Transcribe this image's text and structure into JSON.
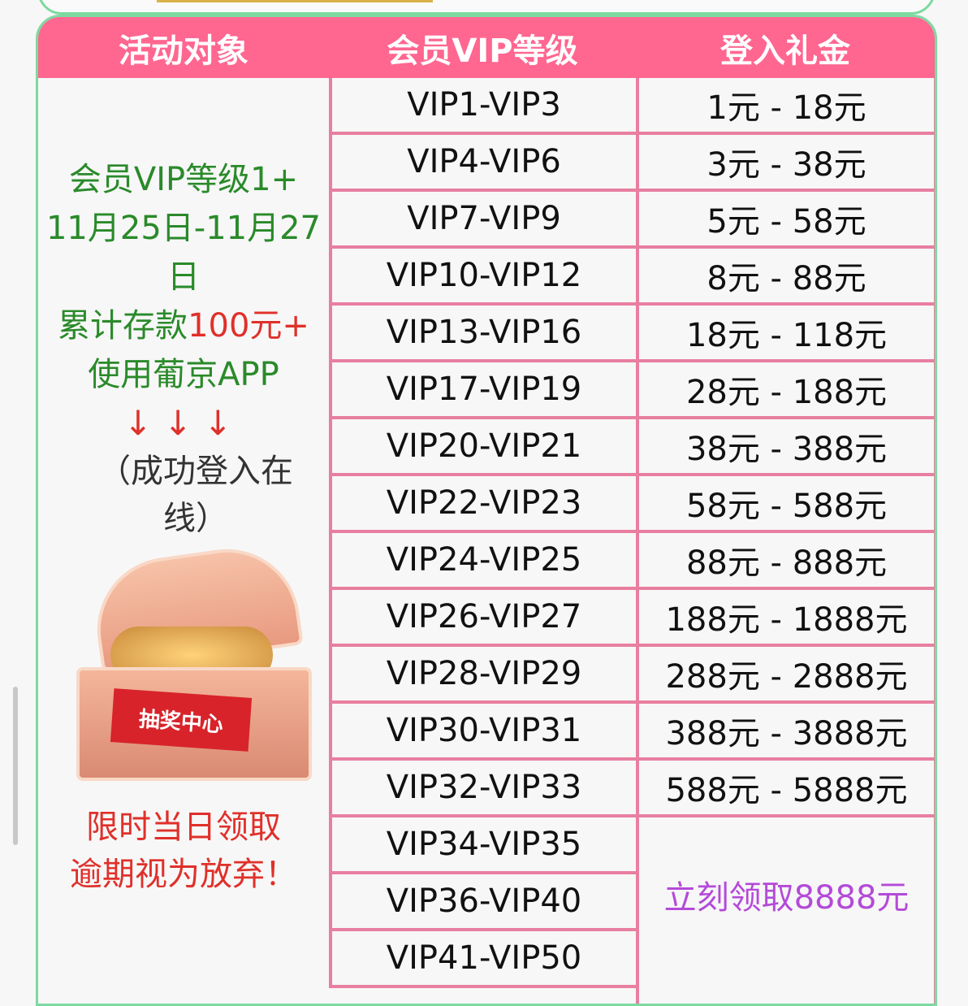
{
  "header": {
    "col1": "活动对象",
    "col2": "会员VIP等级",
    "col3": "登入礼金"
  },
  "left": {
    "line1": "会员VIP等级1+",
    "line2": "11月25日-11月27日",
    "line3a": "累计存款",
    "line3b": "100元+",
    "line4": "使用葡京APP",
    "arrows": "↓↓↓",
    "line5": "（成功登入在线）",
    "chest_label": "抽奖中心",
    "note1": "限时当日领取",
    "note2": "逾期视为放弃！"
  },
  "rows": [
    {
      "level": "VIP1-VIP3",
      "bonus": "1元 - 18元"
    },
    {
      "level": "VIP4-VIP6",
      "bonus": "3元 - 38元"
    },
    {
      "level": "VIP7-VIP9",
      "bonus": "5元 - 58元"
    },
    {
      "level": "VIP10-VIP12",
      "bonus": "8元 - 88元"
    },
    {
      "level": "VIP13-VIP16",
      "bonus": "18元 - 118元"
    },
    {
      "level": "VIP17-VIP19",
      "bonus": "28元 - 188元"
    },
    {
      "level": "VIP20-VIP21",
      "bonus": "38元 - 388元"
    },
    {
      "level": "VIP22-VIP23",
      "bonus": "58元 - 588元"
    },
    {
      "level": "VIP24-VIP25",
      "bonus": "88元 - 888元"
    },
    {
      "level": "VIP26-VIP27",
      "bonus": "188元 - 1888元"
    },
    {
      "level": "VIP28-VIP29",
      "bonus": "288元 - 2888元"
    },
    {
      "level": "VIP30-VIP31",
      "bonus": "388元 - 3888元"
    },
    {
      "level": "VIP32-VIP33",
      "bonus": "588元 - 5888元"
    }
  ],
  "top_rows": [
    {
      "level": "VIP34-VIP35"
    },
    {
      "level": "VIP36-VIP40"
    },
    {
      "level": "VIP41-VIP50"
    }
  ],
  "top_bonus": "立刻领取8888元",
  "colors": {
    "header": "#ff6690",
    "border": "#e87fa0",
    "green": "#2a8a2a",
    "red": "#e0302a",
    "purple": "#b44ad8"
  }
}
